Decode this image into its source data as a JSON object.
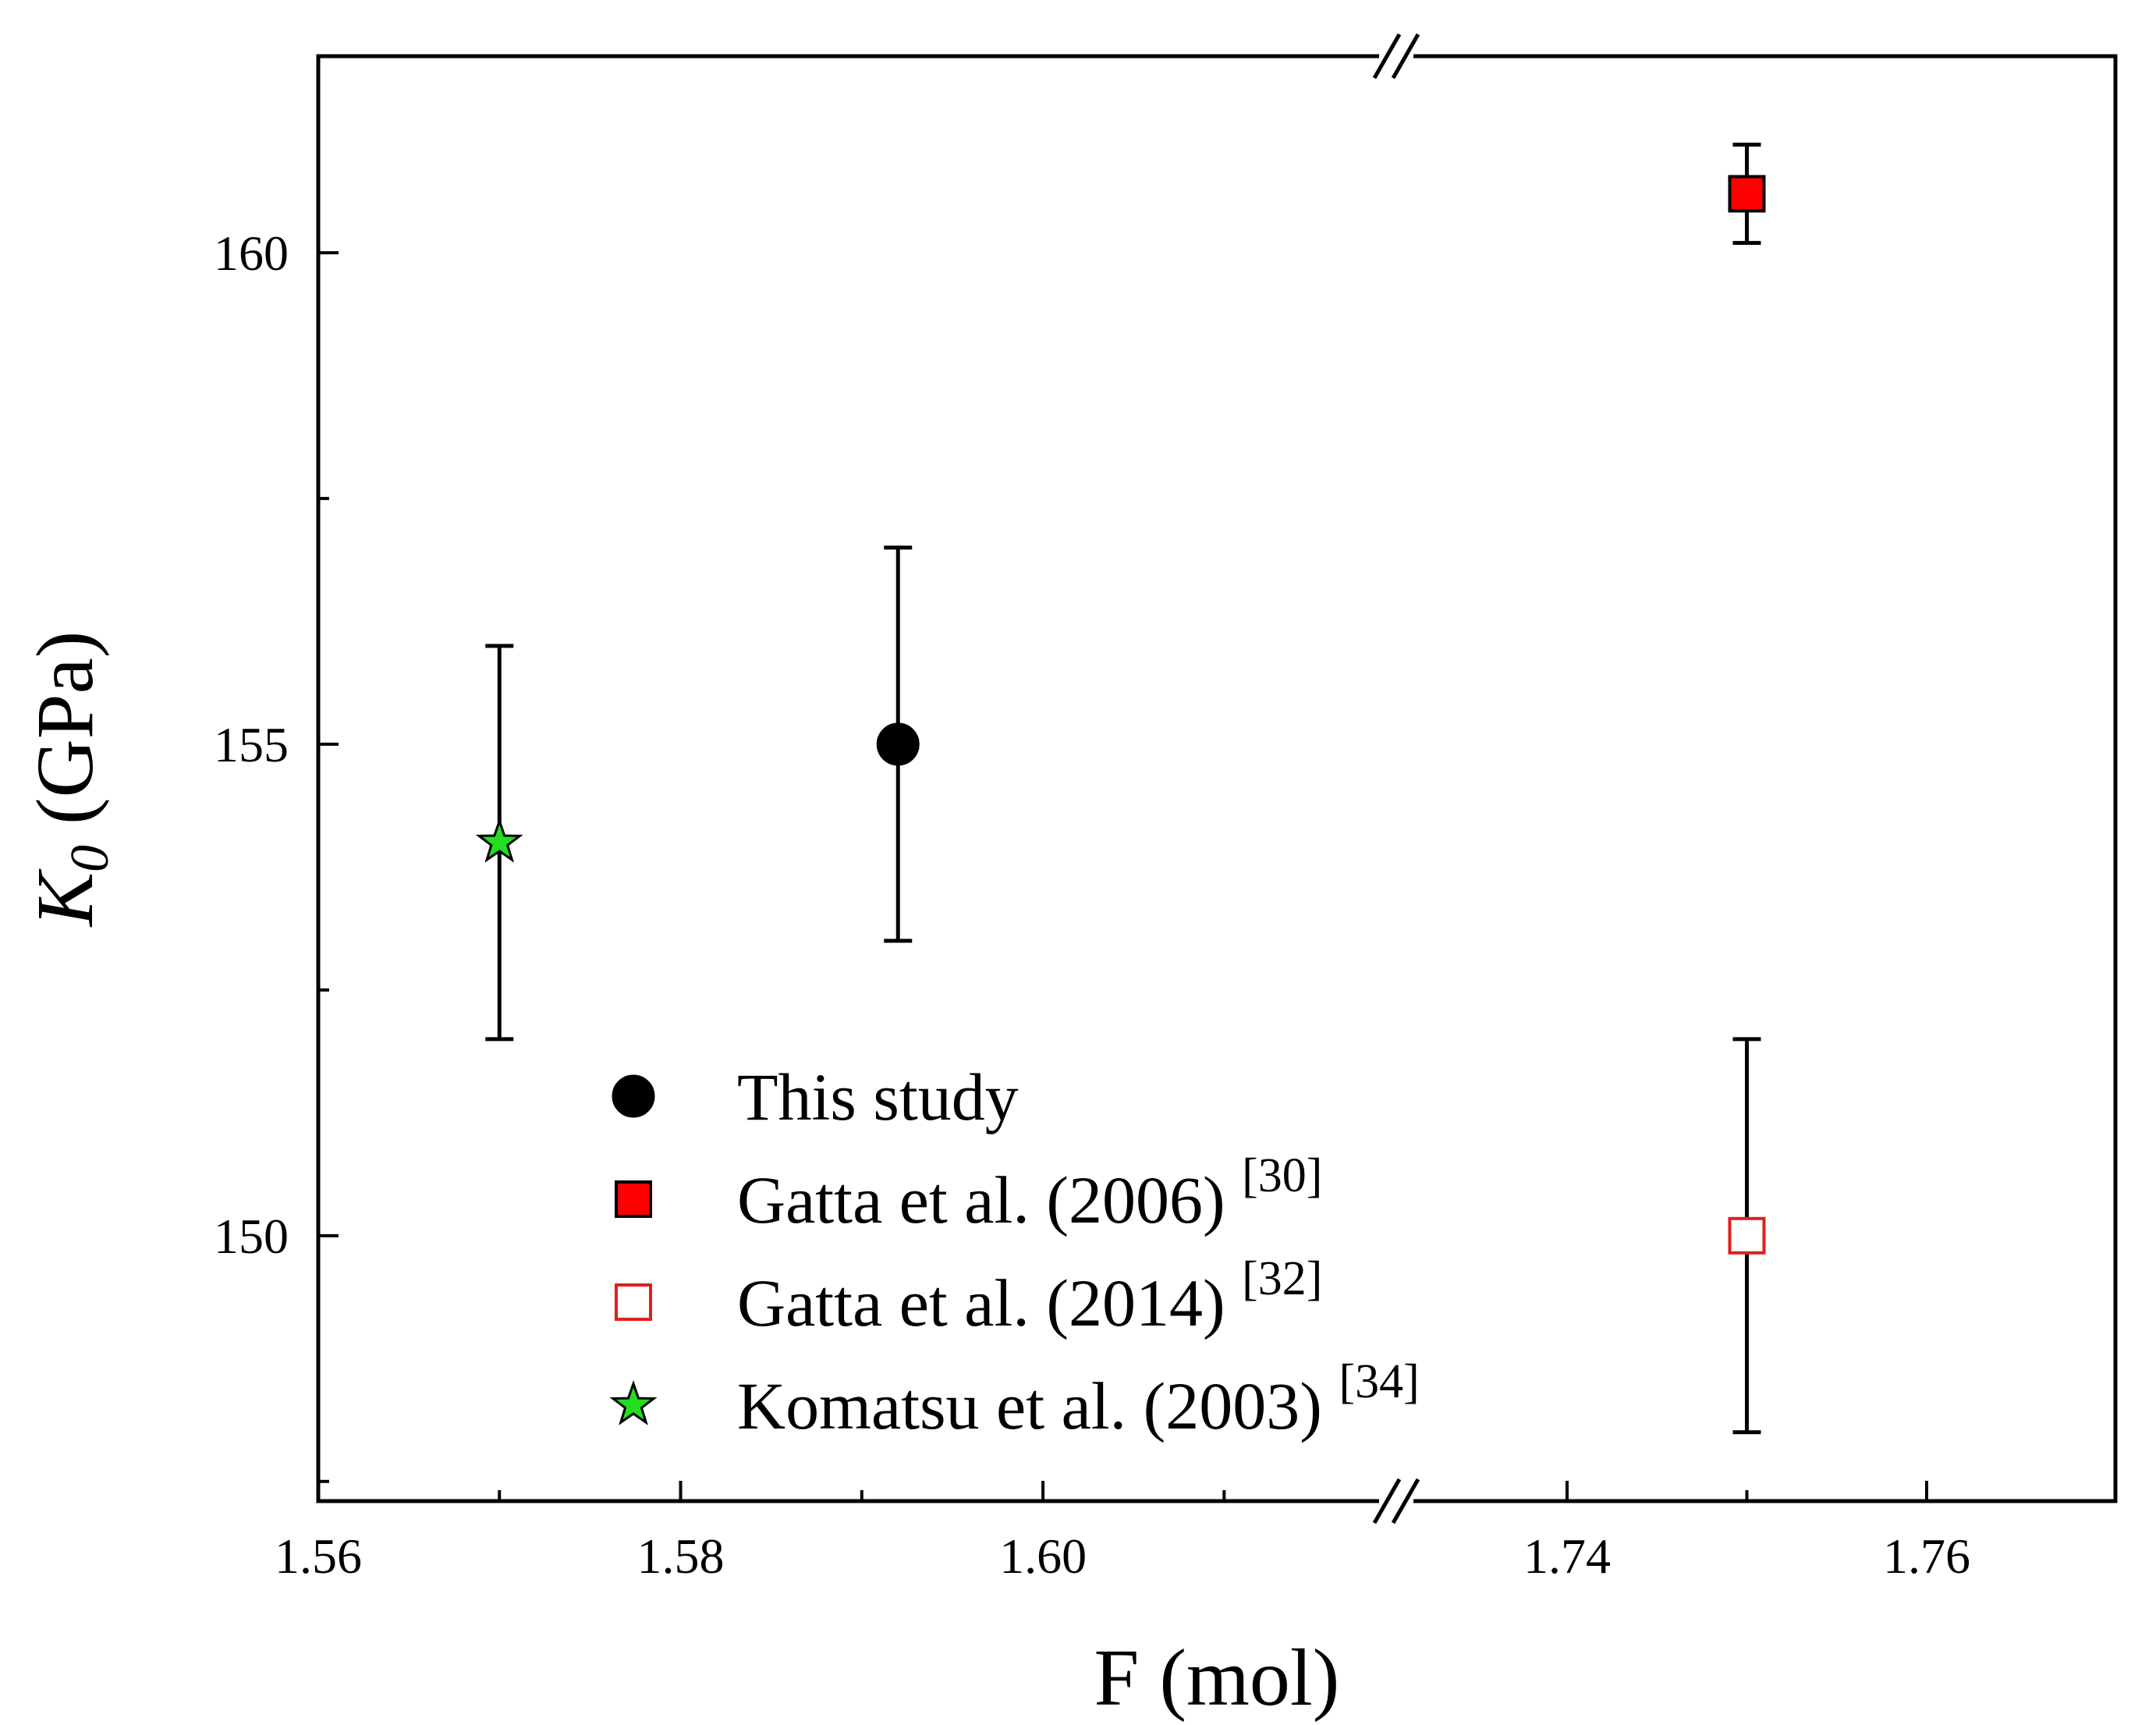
{
  "chart_data": {
    "type": "scatter",
    "title": "",
    "xlabel": "F (mol)",
    "ylabel_main": "K",
    "ylabel_sub": "0",
    "ylabel_unit": " (GPa)",
    "ylim": [
      147.3,
      162.0
    ],
    "y_major_ticks": [
      150,
      155,
      160
    ],
    "y_minor_ticks": [
      147.5,
      152.5,
      157.5
    ],
    "x_segments": [
      {
        "range": [
          1.56,
          1.6195
        ],
        "major_ticks": [
          1.56,
          1.58,
          1.6
        ],
        "minor_ticks": [
          1.57,
          1.59,
          1.61
        ]
      },
      {
        "range": [
          1.7305,
          1.7705
        ],
        "major_ticks": [
          1.74,
          1.76
        ],
        "minor_ticks": [
          1.75
        ]
      }
    ],
    "x_tick_labels": [
      "1.56",
      "1.58",
      "1.60",
      "1.74",
      "1.76"
    ],
    "y_tick_labels": [
      "150",
      "155",
      "160"
    ],
    "axis_break": true,
    "series": [
      {
        "name": "This study",
        "ref": "",
        "marker": "circle",
        "color": "#000000",
        "fill": "#000000",
        "points": [
          {
            "x": 1.592,
            "y": 155.0,
            "err": 2.0
          }
        ]
      },
      {
        "name": "Gatta et al. (2006)",
        "ref": "[30]",
        "marker": "square",
        "color": "#000000",
        "fill": "#ff0000",
        "points": [
          {
            "x": 1.75,
            "y": 160.6,
            "err": 0.5
          }
        ]
      },
      {
        "name": "Gatta et al. (2014)",
        "ref": "[32]",
        "marker": "square-open",
        "color": "#e0201c",
        "fill": "#ffffff",
        "points": [
          {
            "x": 1.75,
            "y": 150.0,
            "err": 2.0
          }
        ]
      },
      {
        "name": "Komatsu et al. (2003)",
        "ref": "[34]",
        "marker": "star",
        "color": "#000000",
        "fill": "#22dd22",
        "points": [
          {
            "x": 1.57,
            "y": 154.0,
            "err": 2.0
          }
        ]
      }
    ],
    "legend_position": "lower-left",
    "grid": false
  }
}
